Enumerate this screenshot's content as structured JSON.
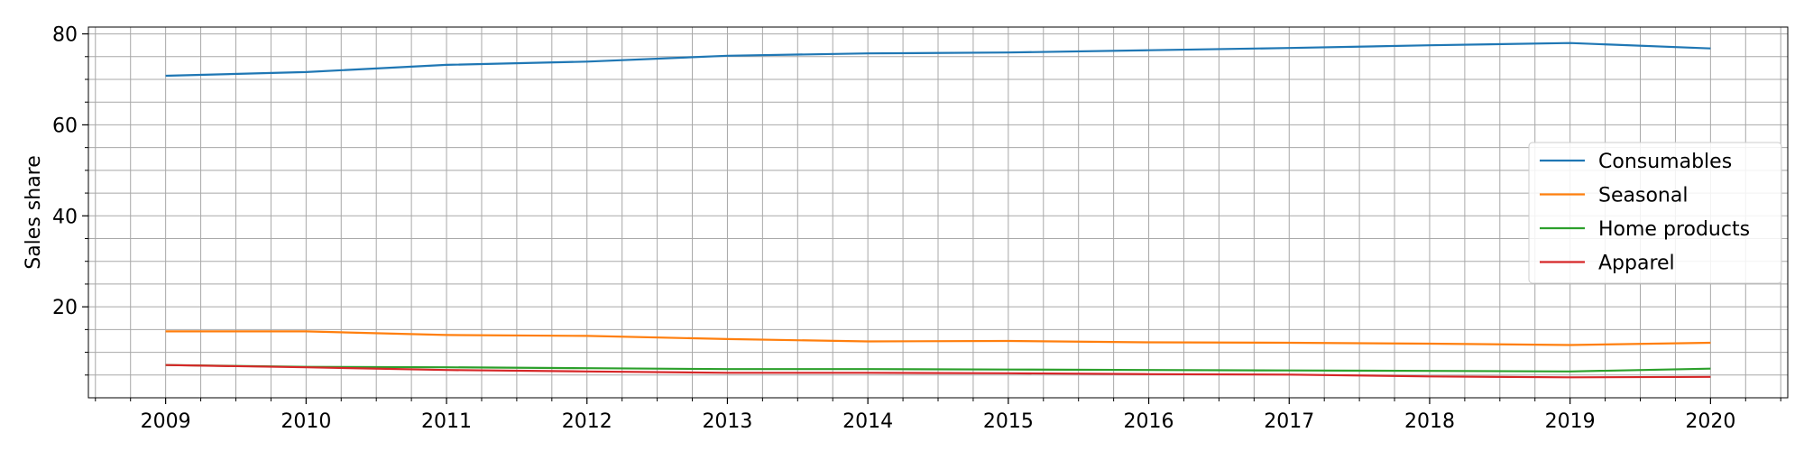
{
  "chart_data": {
    "type": "line",
    "title": "",
    "xlabel": "",
    "ylabel": "Sales share",
    "x": [
      2009,
      2010,
      2011,
      2012,
      2013,
      2014,
      2015,
      2016,
      2017,
      2018,
      2019,
      2020
    ],
    "xlim": [
      2008.45,
      2020.55
    ],
    "ylim": [
      0,
      81.5
    ],
    "yticks": [
      20,
      40,
      60,
      80
    ],
    "grid": true,
    "minor_grid": true,
    "legend_position": "center-right",
    "series": [
      {
        "name": "Consumables",
        "color": "#1f77b4",
        "values": [
          70.8,
          71.6,
          73.2,
          73.9,
          75.2,
          75.7,
          75.9,
          76.4,
          76.9,
          77.5,
          78.0,
          76.8
        ]
      },
      {
        "name": "Seasonal",
        "color": "#ff7f0e",
        "values": [
          14.6,
          14.6,
          13.8,
          13.6,
          12.9,
          12.4,
          12.5,
          12.2,
          12.1,
          11.9,
          11.6,
          12.1
        ]
      },
      {
        "name": "Home products",
        "color": "#2ca02c",
        "values": [
          7.2,
          6.8,
          6.7,
          6.5,
          6.3,
          6.3,
          6.2,
          6.1,
          6.0,
          5.9,
          5.8,
          6.4
        ]
      },
      {
        "name": "Apparel",
        "color": "#d62728",
        "values": [
          7.2,
          6.7,
          6.1,
          5.8,
          5.5,
          5.5,
          5.4,
          5.2,
          5.1,
          4.7,
          4.5,
          4.6
        ]
      }
    ]
  }
}
